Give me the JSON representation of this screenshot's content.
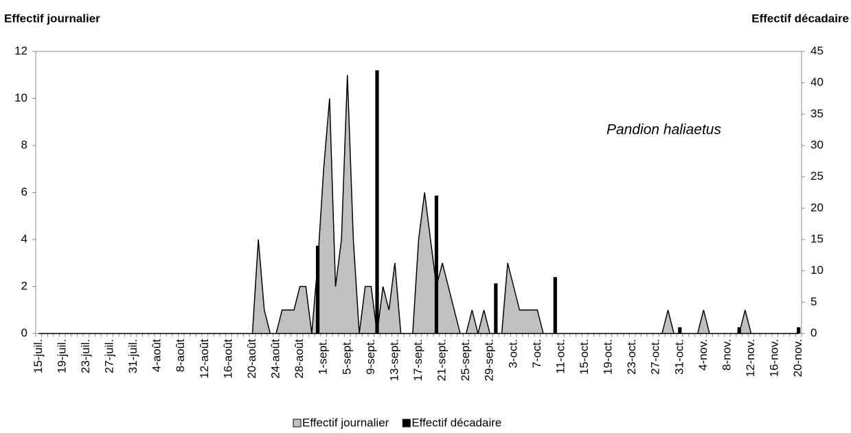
{
  "chart_data": {
    "type": "area-bar",
    "y_label": "Effectif journalier",
    "y2_label": "Effectif décadaire",
    "annotation": "Pandion haliaetus",
    "categories": [
      "15-juil.",
      null,
      null,
      null,
      "19-juil.",
      null,
      null,
      null,
      "23-juil.",
      null,
      null,
      null,
      "27-juil.",
      null,
      null,
      null,
      "31-juil.",
      null,
      null,
      null,
      "4-août",
      null,
      null,
      null,
      "8-août",
      null,
      null,
      null,
      "12-août",
      null,
      null,
      null,
      "16-août",
      null,
      null,
      null,
      "20-août",
      null,
      null,
      null,
      "24-août",
      null,
      null,
      null,
      "28-août",
      null,
      null,
      null,
      "1-sept.",
      null,
      null,
      null,
      "5-sept.",
      null,
      null,
      null,
      "9-sept.",
      null,
      null,
      null,
      "13-sept.",
      null,
      null,
      null,
      "17-sept.",
      null,
      null,
      null,
      "21-sept.",
      null,
      null,
      null,
      "25-sept.",
      null,
      null,
      null,
      "29-sept.",
      null,
      null,
      null,
      "3-oct.",
      null,
      null,
      null,
      "7-oct.",
      null,
      null,
      null,
      "11-oct.",
      null,
      null,
      null,
      "15-oct.",
      null,
      null,
      null,
      "19-oct.",
      null,
      null,
      null,
      "23-oct.",
      null,
      null,
      null,
      "27-oct.",
      null,
      null,
      null,
      "31-oct.",
      null,
      null,
      null,
      "4-nov.",
      null,
      null,
      null,
      "8-nov.",
      null,
      null,
      null,
      "12-nov.",
      null,
      null,
      null,
      "16-nov.",
      null,
      null,
      null,
      "20-nov."
    ],
    "series": [
      {
        "name": "Effectif journalier",
        "kind": "area",
        "color": "#c0c0c0",
        "values": [
          0,
          0,
          0,
          0,
          0,
          0,
          0,
          0,
          0,
          0,
          0,
          0,
          0,
          0,
          0,
          0,
          0,
          0,
          0,
          0,
          0,
          0,
          0,
          0,
          0,
          0,
          0,
          0,
          0,
          0,
          0,
          0,
          0,
          0,
          0,
          0,
          0,
          4,
          1,
          0,
          0,
          1,
          1,
          1,
          2,
          2,
          0,
          3,
          7,
          10,
          2,
          4,
          11,
          4,
          0,
          2,
          2,
          0,
          2,
          1,
          3,
          0,
          0,
          0,
          4,
          6,
          4,
          2,
          3,
          2,
          1,
          0,
          0,
          1,
          0,
          1,
          0,
          0,
          0,
          3,
          2,
          1,
          1,
          1,
          1,
          0,
          0,
          0,
          0,
          0,
          0,
          0,
          0,
          0,
          0,
          0,
          0,
          0,
          0,
          0,
          0,
          0,
          0,
          0,
          0,
          0,
          1,
          0,
          0,
          0,
          0,
          0,
          1,
          0,
          0,
          0,
          0,
          0,
          0,
          1,
          0,
          0,
          0,
          0,
          0,
          0,
          0,
          0,
          0
        ]
      },
      {
        "name": "Effectif décadaire",
        "kind": "bar",
        "axis": "y2",
        "color": "#000000",
        "values": [
          null,
          null,
          null,
          null,
          null,
          null,
          null,
          null,
          null,
          null,
          null,
          null,
          null,
          null,
          null,
          null,
          null,
          null,
          null,
          null,
          null,
          null,
          null,
          null,
          null,
          null,
          null,
          null,
          null,
          null,
          null,
          null,
          null,
          null,
          null,
          null,
          null,
          null,
          null,
          null,
          null,
          null,
          null,
          null,
          null,
          null,
          null,
          14,
          null,
          null,
          null,
          null,
          null,
          null,
          null,
          null,
          null,
          42,
          null,
          null,
          null,
          null,
          null,
          null,
          null,
          null,
          null,
          22,
          null,
          null,
          null,
          null,
          null,
          null,
          null,
          null,
          null,
          8,
          null,
          null,
          null,
          null,
          null,
          null,
          null,
          null,
          null,
          9,
          null,
          null,
          null,
          null,
          null,
          null,
          null,
          null,
          null,
          null,
          null,
          null,
          null,
          null,
          null,
          null,
          null,
          null,
          null,
          null,
          1,
          null,
          null,
          null,
          null,
          null,
          null,
          null,
          null,
          null,
          1,
          null,
          null,
          null,
          null,
          null,
          null,
          null,
          null,
          null,
          1
        ]
      }
    ],
    "ylim": [
      0,
      12
    ],
    "yticks": [
      0,
      2,
      4,
      6,
      8,
      10,
      12
    ],
    "y2lim": [
      0,
      45
    ],
    "y2ticks": [
      0,
      5,
      10,
      15,
      20,
      25,
      30,
      35,
      40,
      45
    ],
    "legend": "bottom"
  }
}
